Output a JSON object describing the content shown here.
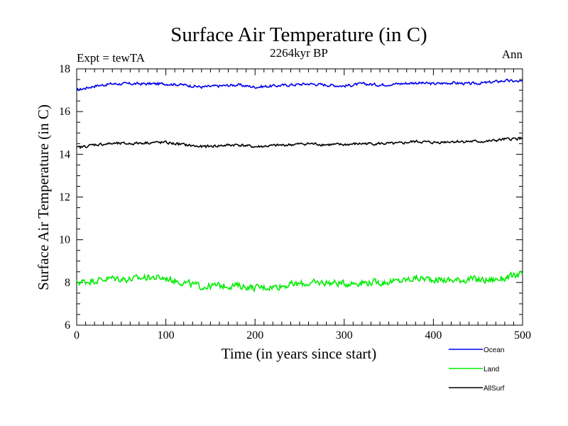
{
  "chart_data": {
    "type": "line",
    "title": "Surface Air Temperature (in C)",
    "subtitle": "2264kyr BP",
    "top_left_label": "Expt = tewTA",
    "top_right_label": "Ann",
    "xlabel": "Time (in years since start)",
    "ylabel": "Surface Air Temperature (in C)",
    "xlim": [
      0,
      500
    ],
    "ylim": [
      6,
      18
    ],
    "x_ticks": [
      "0",
      "100",
      "200",
      "300",
      "400",
      "500"
    ],
    "y_ticks": [
      "6",
      "8",
      "10",
      "12",
      "14",
      "16",
      "18"
    ],
    "x_tick_values": [
      0,
      100,
      200,
      300,
      400,
      500
    ],
    "y_tick_values": [
      6,
      8,
      10,
      12,
      14,
      16,
      18
    ],
    "series": [
      {
        "name": "Ocean",
        "color": "#0000ee",
        "x": [
          0,
          20,
          40,
          60,
          80,
          100,
          120,
          140,
          160,
          180,
          200,
          220,
          240,
          260,
          280,
          300,
          320,
          340,
          360,
          380,
          400,
          420,
          440,
          460,
          480,
          500
        ],
        "values": [
          17.0,
          17.2,
          17.3,
          17.3,
          17.3,
          17.3,
          17.25,
          17.15,
          17.2,
          17.25,
          17.15,
          17.2,
          17.25,
          17.3,
          17.25,
          17.2,
          17.3,
          17.25,
          17.3,
          17.35,
          17.3,
          17.35,
          17.3,
          17.35,
          17.45,
          17.4
        ]
      },
      {
        "name": "Land",
        "color": "#00ee00",
        "x": [
          0,
          20,
          40,
          60,
          80,
          100,
          120,
          140,
          160,
          180,
          200,
          220,
          240,
          260,
          280,
          300,
          320,
          340,
          360,
          380,
          400,
          420,
          440,
          460,
          480,
          500
        ],
        "values": [
          8.0,
          8.1,
          8.2,
          8.15,
          8.25,
          8.2,
          8.0,
          7.8,
          7.85,
          7.85,
          7.75,
          7.8,
          7.9,
          7.95,
          8.0,
          7.95,
          8.0,
          8.0,
          8.05,
          8.2,
          8.15,
          8.1,
          8.15,
          8.1,
          8.2,
          8.4
        ]
      },
      {
        "name": "AllSurf",
        "color": "#000000",
        "x": [
          0,
          20,
          40,
          60,
          80,
          100,
          120,
          140,
          160,
          180,
          200,
          220,
          240,
          260,
          280,
          300,
          320,
          340,
          360,
          380,
          400,
          420,
          440,
          460,
          480,
          500
        ],
        "values": [
          14.3,
          14.45,
          14.5,
          14.5,
          14.55,
          14.55,
          14.45,
          14.35,
          14.4,
          14.45,
          14.35,
          14.4,
          14.45,
          14.5,
          14.45,
          14.45,
          14.5,
          14.5,
          14.5,
          14.6,
          14.55,
          14.6,
          14.6,
          14.6,
          14.7,
          14.75
        ]
      }
    ],
    "legend_position": "bottom-right"
  }
}
